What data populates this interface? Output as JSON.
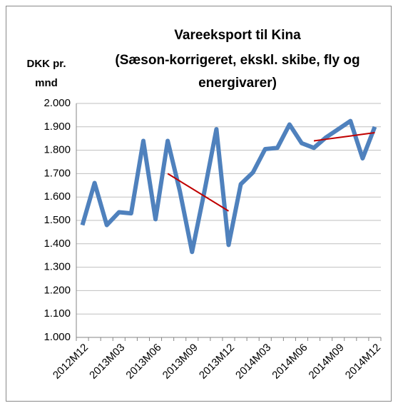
{
  "chart_data": {
    "type": "line",
    "title": [
      "Vareeksport til Kina",
      "(Sæson-korrigeret, ekskl. skibe, fly og",
      "energivarer)"
    ],
    "y_label": [
      "DKK pr.",
      "mnd"
    ],
    "categories": [
      "2012M12",
      null,
      null,
      "2013M03",
      null,
      null,
      "2013M06",
      null,
      null,
      "2013M09",
      null,
      null,
      "2013M12",
      null,
      null,
      "2014M03",
      null,
      null,
      "2014M06",
      null,
      null,
      "2014M09",
      null,
      null,
      "2014M12"
    ],
    "series": [
      {
        "color": "#4f81bd",
        "values": [
          1480,
          1660,
          1480,
          1535,
          1530,
          1840,
          1505,
          1840,
          1625,
          1365,
          1620,
          1890,
          1395,
          1655,
          1705,
          1805,
          1810,
          1910,
          1830,
          1810,
          1855,
          1890,
          1925,
          1765,
          1900
        ]
      },
      {
        "color": "#c00000",
        "values": [
          null,
          null,
          null,
          null,
          null,
          null,
          null,
          1700,
          1668,
          1636,
          1604,
          1572,
          1540,
          null,
          null,
          null,
          null,
          null,
          null,
          null,
          null,
          null,
          null,
          null,
          null
        ]
      },
      {
        "color": "#c00000",
        "values": [
          null,
          null,
          null,
          null,
          null,
          null,
          null,
          null,
          null,
          null,
          null,
          null,
          null,
          null,
          null,
          null,
          null,
          null,
          null,
          1840,
          1847,
          1854,
          1861,
          1868,
          1875
        ]
      }
    ],
    "ylim": [
      1000,
      2000
    ],
    "yticks": [
      {
        "value": 1000,
        "label": "1.000"
      },
      {
        "value": 1100,
        "label": "1.100"
      },
      {
        "value": 1200,
        "label": "1.200"
      },
      {
        "value": 1300,
        "label": "1.300"
      },
      {
        "value": 1400,
        "label": "1.400"
      },
      {
        "value": 1500,
        "label": "1.500"
      },
      {
        "value": 1600,
        "label": "1.600"
      },
      {
        "value": 1700,
        "label": "1.700"
      },
      {
        "value": 1800,
        "label": "1.800"
      },
      {
        "value": 1900,
        "label": "1.900"
      },
      {
        "value": 2000,
        "label": "2.000"
      }
    ],
    "grid": true
  }
}
